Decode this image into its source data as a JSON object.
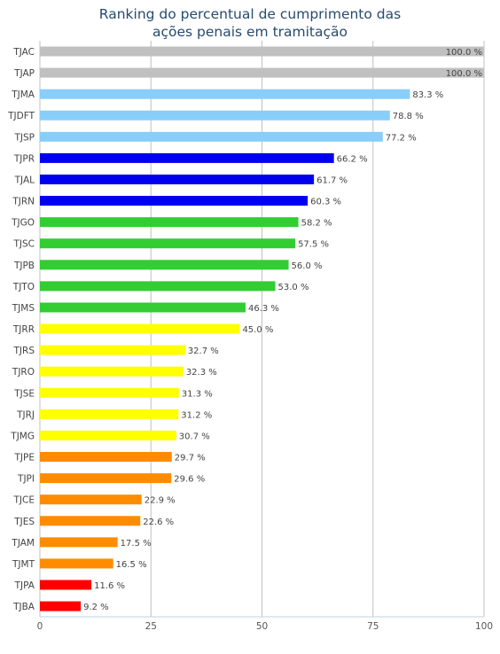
{
  "chart_data": {
    "type": "bar",
    "orientation": "horizontal",
    "title_lines": [
      "Ranking do percentual de cumprimento das",
      "ações penais em tramitação"
    ],
    "categories": [
      "TJAC",
      "TJAP",
      "TJMA",
      "TJDFT",
      "TJSP",
      "TJPR",
      "TJAL",
      "TJRN",
      "TJGO",
      "TJSC",
      "TJPB",
      "TJTO",
      "TJMS",
      "TJRR",
      "TJRS",
      "TJRO",
      "TJSE",
      "TJRJ",
      "TJMG",
      "TJPE",
      "TJPI",
      "TJCE",
      "TJES",
      "TJAM",
      "TJMT",
      "TJPA",
      "TJBA"
    ],
    "values": [
      100.0,
      100.0,
      83.3,
      78.8,
      77.2,
      66.2,
      61.7,
      60.3,
      58.2,
      57.5,
      56.0,
      53.0,
      46.3,
      45.0,
      32.7,
      32.3,
      31.3,
      31.2,
      30.7,
      29.7,
      29.6,
      22.9,
      22.6,
      17.5,
      16.5,
      11.6,
      9.2
    ],
    "value_labels": [
      "100.0 %",
      "100.0 %",
      "83.3 %",
      "78.8 %",
      "77.2 %",
      "66.2 %",
      "61.7 %",
      "60.3 %",
      "58.2 %",
      "57.5 %",
      "56.0 %",
      "53.0 %",
      "46.3 %",
      "45.0 %",
      "32.7 %",
      "32.3 %",
      "31.3 %",
      "31.2 %",
      "30.7 %",
      "29.7 %",
      "29.6 %",
      "22.9 %",
      "22.6 %",
      "17.5 %",
      "16.5 %",
      "11.6 %",
      "9.2 %"
    ],
    "bar_colors": [
      "#c0c0c0",
      "#c0c0c0",
      "#87cefa",
      "#87cefa",
      "#87cefa",
      "#0000ee",
      "#0000ee",
      "#0000ee",
      "#32cd32",
      "#32cd32",
      "#32cd32",
      "#32cd32",
      "#32cd32",
      "#ffff00",
      "#ffff00",
      "#ffff00",
      "#ffff00",
      "#ffff00",
      "#ffff00",
      "#ff8c00",
      "#ff8c00",
      "#ff8c00",
      "#ff8c00",
      "#ff8c00",
      "#ff8c00",
      "#ff0000",
      "#ff0000"
    ],
    "xlim": [
      0,
      100
    ],
    "xticks": [
      0,
      25,
      50,
      75,
      100
    ],
    "xlabel": "",
    "ylabel": "",
    "grid": "vertical",
    "legend": "none"
  },
  "colors": {
    "title": "#274b6d",
    "grid": "#c0c0c0",
    "axis": "#c0d0e0",
    "text": "#444444"
  }
}
